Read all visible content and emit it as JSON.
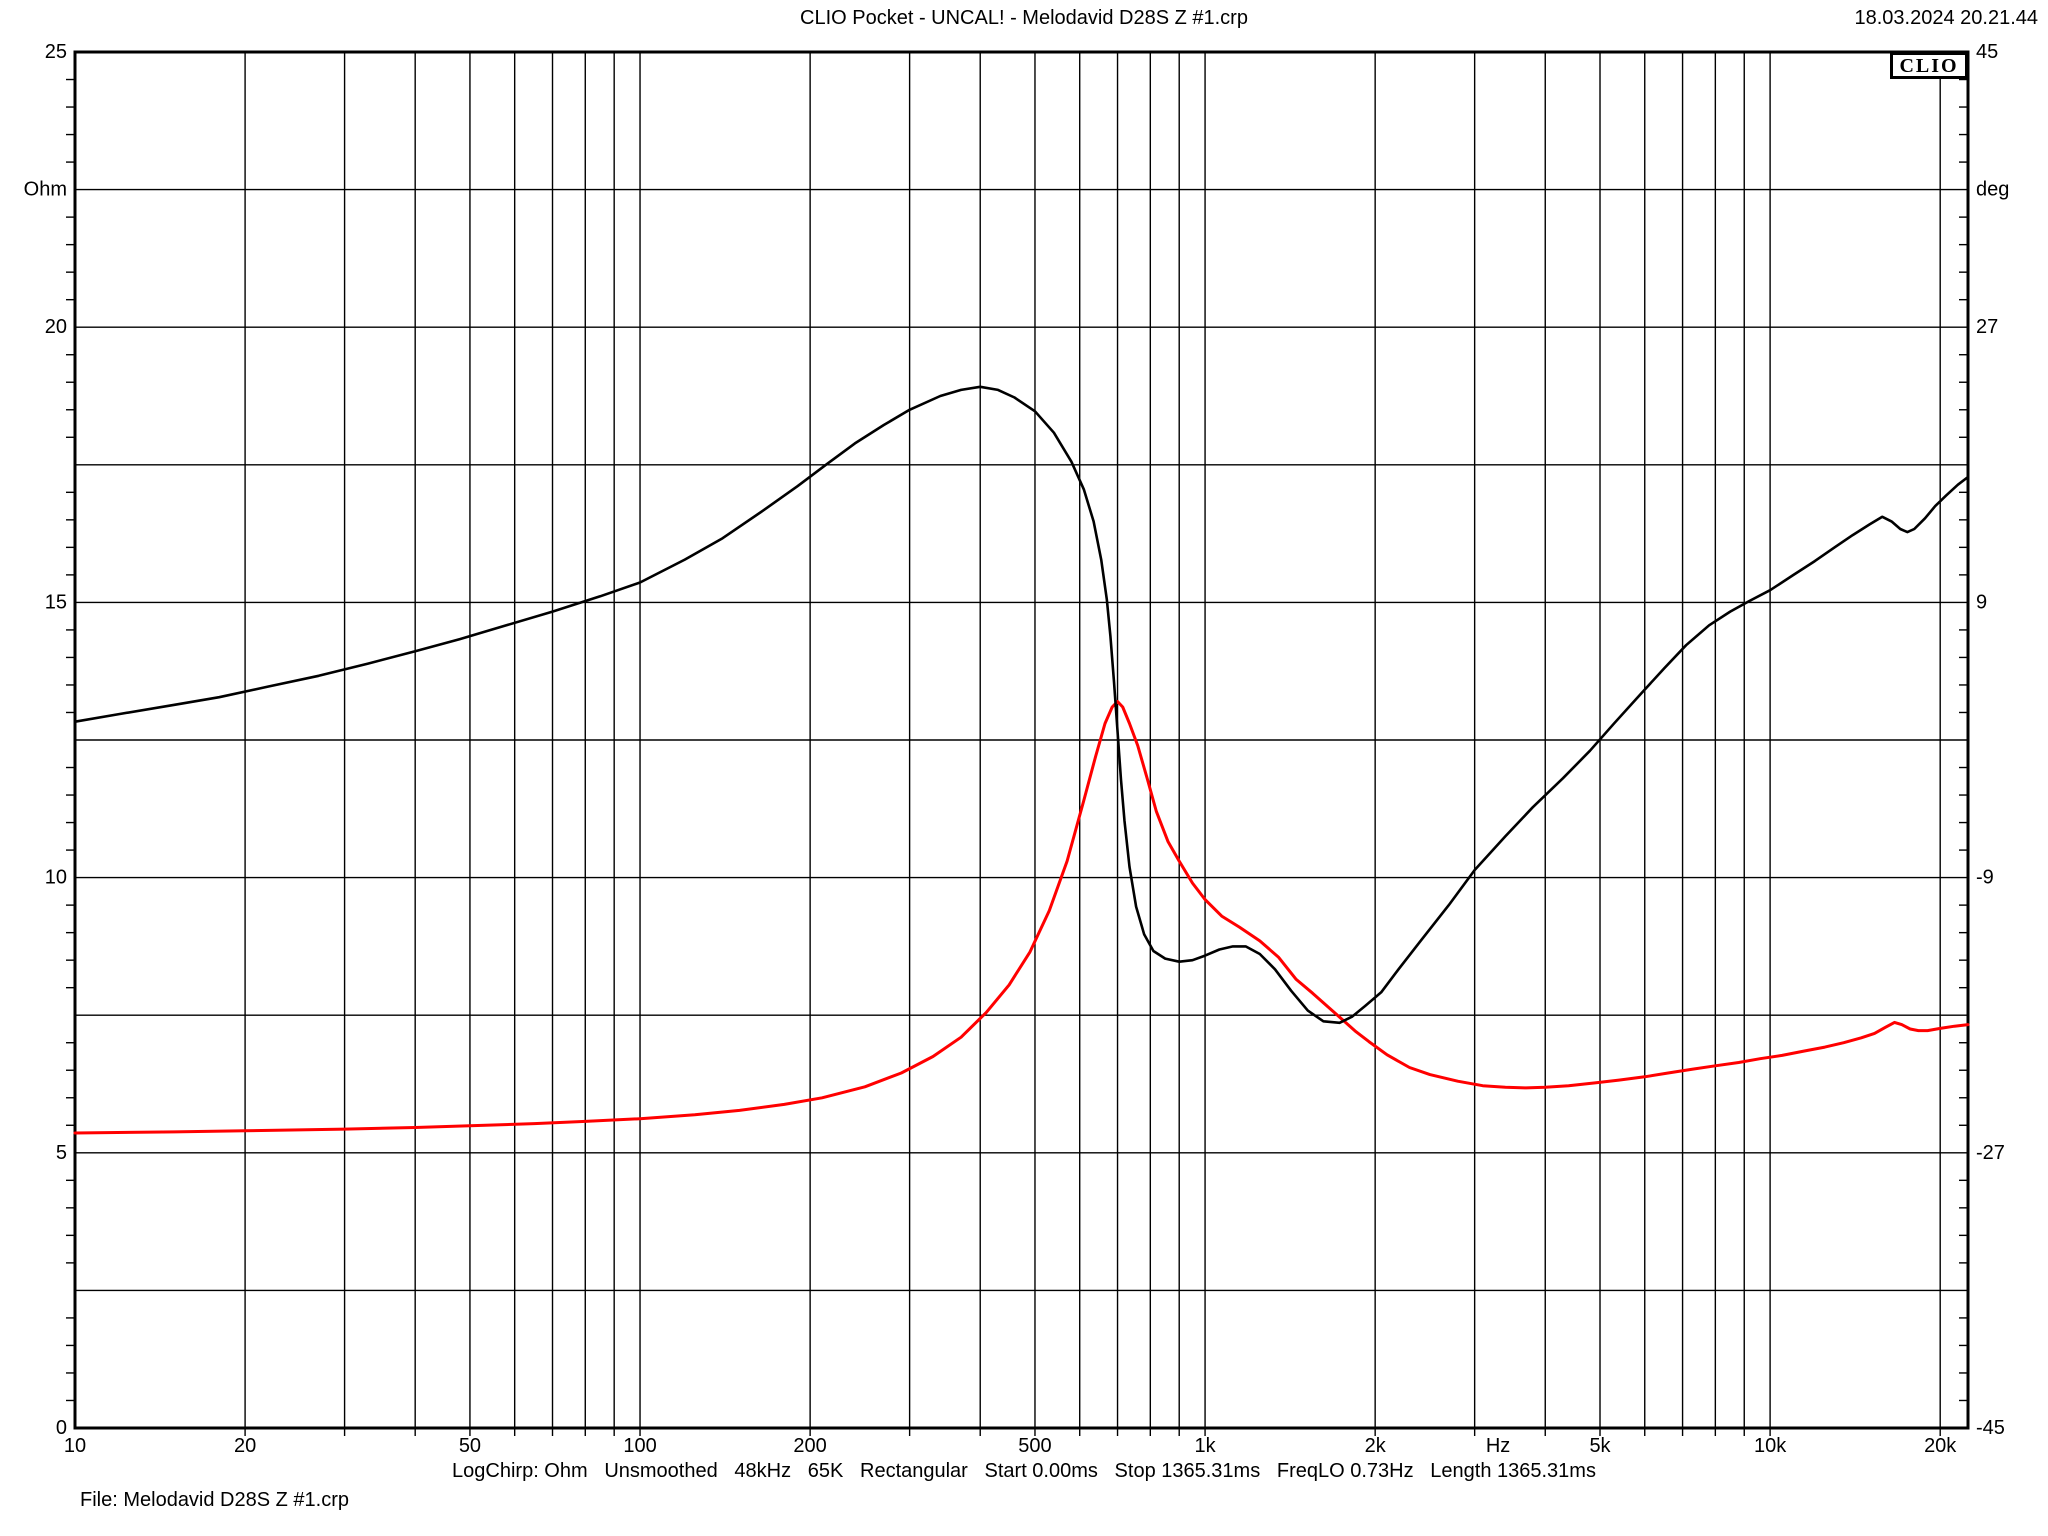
{
  "header": {
    "title": "CLIO Pocket - UNCAL! - Melodavid D28S Z #1.crp",
    "datetime": "18.03.2024 20.21.44"
  },
  "logo": {
    "label": "CLIO"
  },
  "footer": {
    "params_line": "LogChirp: Ohm   Unsmoothed   48kHz   65K   Rectangular   Start 0.00ms   Stop 1365.31ms   FreqLO 0.73Hz   Length 1365.31ms",
    "file_line": "File: Melodavid D28S Z #1.crp"
  },
  "colors": {
    "impedance_curve": "#ff0000",
    "phase_curve": "#000000",
    "grid": "#000000",
    "background": "#ffffff"
  },
  "chart_data": {
    "type": "line",
    "title": "Impedance magnitude and phase vs frequency",
    "x_axis": {
      "scale": "log",
      "min_hz": 10,
      "max_hz": 22400,
      "unit": "Hz",
      "tick_labels": [
        [
          "10",
          10
        ],
        [
          "20",
          20
        ],
        [
          "50",
          50
        ],
        [
          "100",
          100
        ],
        [
          "200",
          200
        ],
        [
          "500",
          500
        ],
        [
          "1k",
          1000
        ],
        [
          "2k",
          2000
        ],
        [
          "Hz",
          3300
        ],
        [
          "5k",
          5000
        ],
        [
          "10k",
          10000
        ],
        [
          "20k",
          20000
        ]
      ]
    },
    "y_left_axis": {
      "unit": "Ohm",
      "min": 0,
      "max": 25,
      "grid_step": 2.5,
      "tick_step": 0.5,
      "labels": [
        [
          "25",
          25
        ],
        [
          "Ohm",
          22.5
        ],
        [
          "20",
          20
        ],
        [
          "15",
          15
        ],
        [
          "10",
          10
        ],
        [
          "5",
          5
        ],
        [
          "0",
          0
        ]
      ]
    },
    "y_right_axis": {
      "unit": "deg",
      "min": -45,
      "max": 45,
      "grid_step": 4.5,
      "tick_step": 1.8,
      "labels": [
        [
          "45",
          45
        ],
        [
          "deg",
          36
        ],
        [
          "27",
          27
        ],
        [
          "9",
          9
        ],
        [
          "-9",
          -9
        ],
        [
          "-27",
          -27
        ],
        [
          "-45",
          -45
        ]
      ]
    },
    "legend": "none",
    "grid": "on",
    "series": [
      {
        "name": "impedance-magnitude-ohm",
        "color": "#ff0000",
        "axis": "left",
        "points": [
          [
            10,
            5.36
          ],
          [
            15,
            5.38
          ],
          [
            20,
            5.4
          ],
          [
            30,
            5.43
          ],
          [
            40,
            5.46
          ],
          [
            50,
            5.49
          ],
          [
            65,
            5.53
          ],
          [
            80,
            5.57
          ],
          [
            100,
            5.62
          ],
          [
            125,
            5.69
          ],
          [
            150,
            5.77
          ],
          [
            180,
            5.88
          ],
          [
            210,
            6.0
          ],
          [
            250,
            6.2
          ],
          [
            290,
            6.45
          ],
          [
            330,
            6.75
          ],
          [
            370,
            7.1
          ],
          [
            410,
            7.55
          ],
          [
            450,
            8.05
          ],
          [
            490,
            8.65
          ],
          [
            530,
            9.4
          ],
          [
            570,
            10.3
          ],
          [
            610,
            11.4
          ],
          [
            640,
            12.2
          ],
          [
            665,
            12.8
          ],
          [
            685,
            13.1
          ],
          [
            700,
            13.2
          ],
          [
            715,
            13.1
          ],
          [
            735,
            12.8
          ],
          [
            760,
            12.4
          ],
          [
            790,
            11.8
          ],
          [
            820,
            11.2
          ],
          [
            860,
            10.65
          ],
          [
            900,
            10.3
          ],
          [
            950,
            9.9
          ],
          [
            1000,
            9.6
          ],
          [
            1070,
            9.3
          ],
          [
            1150,
            9.1
          ],
          [
            1250,
            8.85
          ],
          [
            1350,
            8.55
          ],
          [
            1450,
            8.15
          ],
          [
            1550,
            7.9
          ],
          [
            1650,
            7.65
          ],
          [
            1750,
            7.42
          ],
          [
            1850,
            7.2
          ],
          [
            1950,
            7.02
          ],
          [
            2100,
            6.78
          ],
          [
            2300,
            6.55
          ],
          [
            2500,
            6.42
          ],
          [
            2800,
            6.3
          ],
          [
            3100,
            6.22
          ],
          [
            3400,
            6.19
          ],
          [
            3700,
            6.18
          ],
          [
            4000,
            6.19
          ],
          [
            4400,
            6.22
          ],
          [
            4900,
            6.27
          ],
          [
            5400,
            6.32
          ],
          [
            6000,
            6.38
          ],
          [
            6600,
            6.45
          ],
          [
            7300,
            6.52
          ],
          [
            8000,
            6.58
          ],
          [
            8800,
            6.64
          ],
          [
            9600,
            6.71
          ],
          [
            10500,
            6.77
          ],
          [
            11500,
            6.85
          ],
          [
            12500,
            6.92
          ],
          [
            13500,
            7.0
          ],
          [
            14500,
            7.09
          ],
          [
            15300,
            7.17
          ],
          [
            16000,
            7.28
          ],
          [
            16600,
            7.37
          ],
          [
            17100,
            7.33
          ],
          [
            17700,
            7.25
          ],
          [
            18300,
            7.22
          ],
          [
            19000,
            7.22
          ],
          [
            20000,
            7.26
          ],
          [
            21200,
            7.3
          ],
          [
            22400,
            7.33
          ]
        ]
      },
      {
        "name": "phase-deg",
        "color": "#000000",
        "axis": "right",
        "points": [
          [
            10,
            1.2
          ],
          [
            12,
            1.7
          ],
          [
            15,
            2.3
          ],
          [
            18,
            2.8
          ],
          [
            22,
            3.5
          ],
          [
            27,
            4.2
          ],
          [
            33,
            5.0
          ],
          [
            40,
            5.8
          ],
          [
            48,
            6.6
          ],
          [
            58,
            7.5
          ],
          [
            70,
            8.4
          ],
          [
            85,
            9.4
          ],
          [
            100,
            10.3
          ],
          [
            120,
            11.8
          ],
          [
            140,
            13.2
          ],
          [
            165,
            15.0
          ],
          [
            190,
            16.6
          ],
          [
            215,
            18.1
          ],
          [
            240,
            19.4
          ],
          [
            270,
            20.6
          ],
          [
            300,
            21.6
          ],
          [
            340,
            22.5
          ],
          [
            370,
            22.9
          ],
          [
            400,
            23.1
          ],
          [
            430,
            22.9
          ],
          [
            460,
            22.4
          ],
          [
            500,
            21.5
          ],
          [
            540,
            20.1
          ],
          [
            580,
            18.2
          ],
          [
            610,
            16.4
          ],
          [
            635,
            14.3
          ],
          [
            655,
            11.8
          ],
          [
            670,
            9.2
          ],
          [
            680,
            6.8
          ],
          [
            690,
            3.8
          ],
          [
            700,
            0.6
          ],
          [
            710,
            -2.6
          ],
          [
            720,
            -5.3
          ],
          [
            735,
            -8.3
          ],
          [
            755,
            -10.9
          ],
          [
            780,
            -12.7
          ],
          [
            810,
            -13.8
          ],
          [
            850,
            -14.3
          ],
          [
            900,
            -14.5
          ],
          [
            950,
            -14.4
          ],
          [
            1000,
            -14.1
          ],
          [
            1060,
            -13.7
          ],
          [
            1120,
            -13.5
          ],
          [
            1180,
            -13.5
          ],
          [
            1250,
            -14.0
          ],
          [
            1330,
            -15.0
          ],
          [
            1420,
            -16.4
          ],
          [
            1520,
            -17.7
          ],
          [
            1620,
            -18.4
          ],
          [
            1730,
            -18.5
          ],
          [
            1820,
            -18.1
          ],
          [
            1920,
            -17.4
          ],
          [
            2050,
            -16.5
          ],
          [
            2200,
            -15.0
          ],
          [
            2400,
            -13.2
          ],
          [
            2700,
            -10.8
          ],
          [
            3000,
            -8.5
          ],
          [
            3400,
            -6.3
          ],
          [
            3800,
            -4.4
          ],
          [
            4300,
            -2.5
          ],
          [
            4800,
            -0.7
          ],
          [
            5300,
            1.1
          ],
          [
            5900,
            3.0
          ],
          [
            6500,
            4.7
          ],
          [
            7100,
            6.2
          ],
          [
            7800,
            7.5
          ],
          [
            8500,
            8.4
          ],
          [
            9200,
            9.1
          ],
          [
            10000,
            9.8
          ],
          [
            11000,
            10.8
          ],
          [
            12000,
            11.7
          ],
          [
            13000,
            12.6
          ],
          [
            14000,
            13.4
          ],
          [
            15000,
            14.1
          ],
          [
            15800,
            14.6
          ],
          [
            16400,
            14.3
          ],
          [
            17000,
            13.8
          ],
          [
            17500,
            13.6
          ],
          [
            18000,
            13.8
          ],
          [
            18800,
            14.5
          ],
          [
            19600,
            15.3
          ],
          [
            20500,
            16.0
          ],
          [
            21500,
            16.7
          ],
          [
            22400,
            17.2
          ]
        ]
      }
    ]
  }
}
